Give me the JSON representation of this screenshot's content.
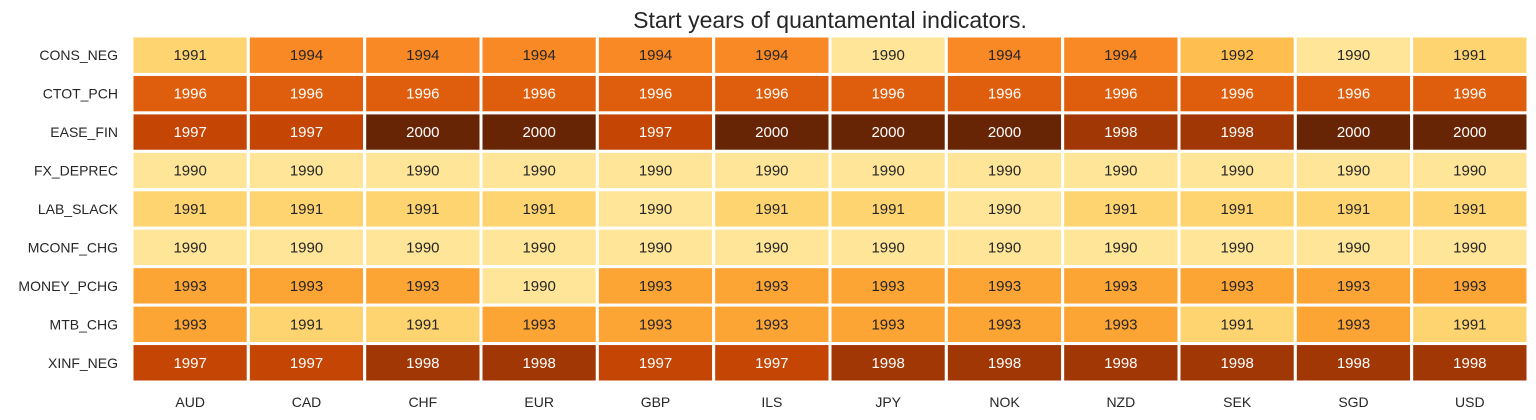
{
  "chart_data": {
    "type": "heatmap",
    "title": "Start years of quantamental indicators.",
    "xlabel": "",
    "ylabel": "",
    "columns": [
      "AUD",
      "CAD",
      "CHF",
      "EUR",
      "GBP",
      "ILS",
      "JPY",
      "NOK",
      "NZD",
      "SEK",
      "SGD",
      "USD"
    ],
    "rows": [
      "CONS_NEG",
      "CTOT_PCH",
      "EASE_FIN",
      "FX_DEPREC",
      "LAB_SLACK",
      "MCONF_CHG",
      "MONEY_PCHG",
      "MTB_CHG",
      "XINF_NEG"
    ],
    "values": [
      [
        1991,
        1994,
        1994,
        1994,
        1994,
        1994,
        1990,
        1994,
        1994,
        1992,
        1990,
        1991
      ],
      [
        1996,
        1996,
        1996,
        1996,
        1996,
        1996,
        1996,
        1996,
        1996,
        1996,
        1996,
        1996
      ],
      [
        1997,
        1997,
        2000,
        2000,
        1997,
        2000,
        2000,
        2000,
        1998,
        1998,
        2000,
        2000
      ],
      [
        1990,
        1990,
        1990,
        1990,
        1990,
        1990,
        1990,
        1990,
        1990,
        1990,
        1990,
        1990
      ],
      [
        1991,
        1991,
        1991,
        1991,
        1990,
        1991,
        1991,
        1990,
        1991,
        1991,
        1991,
        1991
      ],
      [
        1990,
        1990,
        1990,
        1990,
        1990,
        1990,
        1990,
        1990,
        1990,
        1990,
        1990,
        1990
      ],
      [
        1993,
        1993,
        1993,
        1990,
        1993,
        1993,
        1993,
        1993,
        1993,
        1993,
        1993,
        1993
      ],
      [
        1993,
        1991,
        1991,
        1993,
        1993,
        1993,
        1993,
        1993,
        1993,
        1991,
        1993,
        1991
      ],
      [
        1997,
        1997,
        1998,
        1998,
        1997,
        1997,
        1998,
        1998,
        1998,
        1998,
        1998,
        1998
      ]
    ],
    "color_scale": {
      "1990": "#fee597",
      "1991": "#fed471",
      "1992": "#febf50",
      "1993": "#fca434",
      "1994": "#f98924",
      "1996": "#de5e0d",
      "1997": "#c44504",
      "1998": "#a13705",
      "2000": "#682506"
    },
    "colorbar": false,
    "grid": false
  }
}
